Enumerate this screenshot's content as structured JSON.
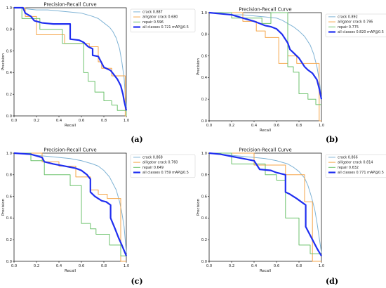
{
  "chart_data": [
    {
      "panel": "(a)",
      "type": "line",
      "title": "Precision-Recall Curve",
      "xlabel": "Recall",
      "ylabel": "Precision",
      "xlim": [
        0,
        1
      ],
      "ylim": [
        0,
        1
      ],
      "xticks": [
        "0.0",
        "0.2",
        "0.4",
        "0.6",
        "0.8",
        "1.0"
      ],
      "yticks": [
        "0.0",
        "0.2",
        "0.4",
        "0.6",
        "0.8",
        "1.0"
      ],
      "legend_position": "top-right",
      "series": [
        {
          "name": "crack 0.887",
          "color": "#7fb3d5",
          "width": 1.0,
          "x": [
            0,
            0.05,
            0.1,
            0.2,
            0.3,
            0.4,
            0.5,
            0.6,
            0.7,
            0.75,
            0.8,
            0.85,
            0.88,
            0.91,
            0.94,
            0.96,
            0.98,
            0.99,
            1.0
          ],
          "y": [
            1,
            1,
            0.99,
            0.98,
            0.98,
            0.97,
            0.96,
            0.95,
            0.92,
            0.9,
            0.86,
            0.82,
            0.78,
            0.72,
            0.62,
            0.5,
            0.35,
            0.2,
            0.08
          ]
        },
        {
          "name": "alligator crack 0.680",
          "color": "#f5a64a",
          "width": 1.0,
          "x": [
            0,
            0.1,
            0.1,
            0.2,
            0.2,
            0.45,
            0.45,
            0.67,
            0.67,
            0.75,
            0.75,
            0.78,
            0.78,
            0.87,
            0.87,
            0.99,
            0.99,
            1.0
          ],
          "y": [
            1,
            1,
            0.92,
            0.92,
            0.75,
            0.75,
            0.67,
            0.67,
            0.64,
            0.64,
            0.5,
            0.5,
            0.44,
            0.44,
            0.37,
            0.37,
            0.0,
            0.0
          ]
        },
        {
          "name": "repair 0.596",
          "color": "#6cc26c",
          "width": 1.0,
          "x": [
            0,
            0.07,
            0.07,
            0.23,
            0.23,
            0.43,
            0.43,
            0.62,
            0.62,
            0.66,
            0.66,
            0.72,
            0.72,
            0.8,
            0.8,
            0.87,
            0.87,
            0.92,
            0.92,
            1.0,
            1.0
          ],
          "y": [
            1,
            1,
            0.9,
            0.9,
            0.8,
            0.8,
            0.67,
            0.67,
            0.4,
            0.4,
            0.32,
            0.32,
            0.22,
            0.22,
            0.14,
            0.14,
            0.1,
            0.1,
            0.05,
            0.05,
            0.0
          ]
        },
        {
          "name": "all classes 0.721 mAP@0.5",
          "color": "#1f2ef0",
          "width": 2.2,
          "x": [
            0,
            0.08,
            0.1,
            0.15,
            0.18,
            0.25,
            0.35,
            0.5,
            0.5,
            0.58,
            0.62,
            0.66,
            0.7,
            0.7,
            0.75,
            0.8,
            0.82,
            0.86,
            0.89,
            0.92,
            0.95,
            0.97,
            0.98,
            1.0
          ],
          "y": [
            1,
            1,
            0.95,
            0.92,
            0.88,
            0.86,
            0.85,
            0.85,
            0.71,
            0.7,
            0.68,
            0.64,
            0.62,
            0.56,
            0.55,
            0.45,
            0.44,
            0.42,
            0.38,
            0.34,
            0.28,
            0.2,
            0.14,
            0.05
          ]
        }
      ]
    },
    {
      "panel": "(b)",
      "type": "line",
      "title": "Precision-Recall Curve",
      "xlabel": "Recall",
      "ylabel": "Precision",
      "xlim": [
        0,
        1
      ],
      "ylim": [
        0,
        1
      ],
      "xticks": [
        "0.0",
        "0.2",
        "0.4",
        "0.6",
        "0.8",
        "1.0"
      ],
      "yticks": [
        "0.0",
        "0.2",
        "0.4",
        "0.6",
        "0.8",
        "1.0"
      ],
      "legend_position": "top-right",
      "series": [
        {
          "name": "crack 0.892",
          "color": "#7fb3d5",
          "width": 1.0,
          "x": [
            0,
            0.1,
            0.2,
            0.3,
            0.4,
            0.5,
            0.6,
            0.65,
            0.7,
            0.75,
            0.8,
            0.85,
            0.9,
            0.93,
            0.96,
            0.98,
            1.0
          ],
          "y": [
            1,
            0.99,
            0.98,
            0.98,
            0.97,
            0.96,
            0.95,
            0.93,
            0.9,
            0.87,
            0.83,
            0.78,
            0.7,
            0.62,
            0.5,
            0.38,
            0.2
          ]
        },
        {
          "name": "alligator crack 0.795",
          "color": "#f5a64a",
          "width": 1.0,
          "x": [
            0,
            0.3,
            0.3,
            0.42,
            0.42,
            0.5,
            0.5,
            0.62,
            0.62,
            0.7,
            0.7,
            0.78,
            0.78,
            0.98,
            0.98,
            1.0
          ],
          "y": [
            1,
            1,
            0.92,
            0.92,
            0.83,
            0.83,
            0.77,
            0.77,
            0.53,
            0.53,
            0.6,
            0.6,
            0.53,
            0.53,
            0.0,
            0.0
          ]
        },
        {
          "name": "repair 0.775",
          "color": "#6cc26c",
          "width": 1.0,
          "x": [
            0,
            0.2,
            0.2,
            0.47,
            0.47,
            0.55,
            0.55,
            0.7,
            0.7,
            0.75,
            0.75,
            0.8,
            0.8,
            0.88,
            0.88,
            0.95,
            0.95,
            1.0
          ],
          "y": [
            1,
            1,
            0.95,
            0.95,
            0.9,
            0.9,
            1.0,
            1.0,
            0.5,
            0.5,
            0.45,
            0.45,
            0.25,
            0.25,
            0.2,
            0.2,
            0.15,
            0.15
          ]
        },
        {
          "name": "all classes 0.820 mAP@0.5",
          "color": "#1f2ef0",
          "width": 2.2,
          "x": [
            0,
            0.2,
            0.3,
            0.4,
            0.45,
            0.5,
            0.55,
            0.6,
            0.65,
            0.7,
            0.72,
            0.75,
            0.8,
            0.85,
            0.88,
            0.92,
            0.96,
            0.98,
            1.0
          ],
          "y": [
            1,
            0.98,
            0.95,
            0.92,
            0.9,
            0.88,
            0.87,
            0.85,
            0.8,
            0.72,
            0.66,
            0.63,
            0.58,
            0.5,
            0.47,
            0.44,
            0.38,
            0.3,
            0.2
          ]
        }
      ]
    },
    {
      "panel": "(c)",
      "type": "line",
      "title": "Precision-Recall Curve",
      "xlabel": "Recall",
      "ylabel": "Precision",
      "xlim": [
        0,
        1
      ],
      "ylim": [
        0,
        1
      ],
      "xticks": [
        "0.0",
        "0.2",
        "0.4",
        "0.6",
        "0.8",
        "1.0"
      ],
      "yticks": [
        "0.0",
        "0.2",
        "0.4",
        "0.6",
        "0.8",
        "1.0"
      ],
      "legend_position": "top-right",
      "series": [
        {
          "name": "crack 0.868",
          "color": "#7fb3d5",
          "width": 1.0,
          "x": [
            0,
            0.1,
            0.2,
            0.3,
            0.4,
            0.5,
            0.6,
            0.7,
            0.75,
            0.8,
            0.85,
            0.88,
            0.91,
            0.94,
            0.96,
            0.98,
            0.99,
            1.0
          ],
          "y": [
            1,
            0.99,
            0.98,
            0.97,
            0.96,
            0.95,
            0.93,
            0.9,
            0.88,
            0.84,
            0.78,
            0.72,
            0.66,
            0.55,
            0.45,
            0.32,
            0.2,
            0.08
          ]
        },
        {
          "name": "alligator crack 0.760",
          "color": "#f5a64a",
          "width": 1.0,
          "x": [
            0,
            0.25,
            0.25,
            0.4,
            0.4,
            0.55,
            0.55,
            0.68,
            0.68,
            0.75,
            0.75,
            0.83,
            0.83,
            0.95,
            0.95,
            1.0
          ],
          "y": [
            1,
            1,
            0.92,
            0.92,
            0.88,
            0.88,
            0.78,
            0.78,
            0.66,
            0.66,
            0.62,
            0.62,
            0.58,
            0.58,
            0.0,
            0.0
          ]
        },
        {
          "name": "repair 0.649",
          "color": "#6cc26c",
          "width": 1.0,
          "x": [
            0,
            0.15,
            0.15,
            0.27,
            0.27,
            0.5,
            0.5,
            0.6,
            0.6,
            0.68,
            0.68,
            0.73,
            0.73,
            0.85,
            0.85,
            0.95,
            0.95,
            1.0
          ],
          "y": [
            1,
            1,
            0.93,
            0.93,
            0.8,
            0.8,
            0.7,
            0.7,
            0.35,
            0.35,
            0.3,
            0.3,
            0.25,
            0.25,
            0.15,
            0.15,
            0.05,
            0.05
          ]
        },
        {
          "name": "all classes 0.759 mAP@0.5",
          "color": "#1f2ef0",
          "width": 2.2,
          "x": [
            0,
            0.15,
            0.25,
            0.27,
            0.35,
            0.45,
            0.55,
            0.6,
            0.65,
            0.68,
            0.68,
            0.72,
            0.75,
            0.78,
            0.82,
            0.86,
            0.86,
            0.9,
            0.93,
            0.96,
            1.0
          ],
          "y": [
            1,
            0.99,
            0.96,
            0.92,
            0.9,
            0.88,
            0.86,
            0.84,
            0.8,
            0.76,
            0.64,
            0.6,
            0.58,
            0.56,
            0.55,
            0.52,
            0.4,
            0.3,
            0.22,
            0.15,
            0.05
          ]
        }
      ]
    },
    {
      "panel": "(d)",
      "type": "line",
      "title": "Precision-Recall Curve",
      "xlabel": "Recall",
      "ylabel": "Precision",
      "xlim": [
        0,
        1
      ],
      "ylim": [
        0,
        1
      ],
      "xticks": [
        "0.0",
        "0.2",
        "0.4",
        "0.6",
        "0.8",
        "1.0"
      ],
      "yticks": [
        "0.0",
        "0.2",
        "0.4",
        "0.6",
        "0.8",
        "1.0"
      ],
      "legend_position": "top-right",
      "series": [
        {
          "name": "crack 0.866",
          "color": "#7fb3d5",
          "width": 1.0,
          "x": [
            0,
            0.1,
            0.2,
            0.3,
            0.4,
            0.5,
            0.6,
            0.7,
            0.75,
            0.8,
            0.85,
            0.88,
            0.91,
            0.94,
            0.96,
            0.98,
            1.0
          ],
          "y": [
            1,
            0.99,
            0.98,
            0.97,
            0.96,
            0.95,
            0.93,
            0.9,
            0.87,
            0.83,
            0.77,
            0.7,
            0.6,
            0.48,
            0.36,
            0.22,
            0.08
          ]
        },
        {
          "name": "alligator crack 0.814",
          "color": "#f5a64a",
          "width": 1.0,
          "x": [
            0,
            0.4,
            0.4,
            0.68,
            0.68,
            0.85,
            0.85,
            0.92,
            0.92,
            1.0
          ],
          "y": [
            1,
            1,
            0.89,
            0.89,
            0.8,
            0.8,
            0.55,
            0.55,
            0.0,
            0.0
          ]
        },
        {
          "name": "repair 0.632",
          "color": "#6cc26c",
          "width": 1.0,
          "x": [
            0,
            0.2,
            0.2,
            0.5,
            0.5,
            0.6,
            0.6,
            0.68,
            0.68,
            0.8,
            0.8,
            0.9,
            0.9,
            1.0
          ],
          "y": [
            1,
            1,
            0.9,
            0.9,
            0.8,
            0.8,
            0.75,
            0.75,
            0.4,
            0.4,
            0.15,
            0.15,
            0.07,
            0.07
          ]
        },
        {
          "name": "all classes 0.771 mAP@0.5",
          "color": "#1f2ef0",
          "width": 2.2,
          "x": [
            0,
            0.1,
            0.2,
            0.3,
            0.4,
            0.45,
            0.55,
            0.6,
            0.68,
            0.68,
            0.72,
            0.78,
            0.82,
            0.86,
            0.86,
            0.9,
            0.93,
            0.96,
            1.0
          ],
          "y": [
            1,
            0.99,
            0.97,
            0.95,
            0.93,
            0.85,
            0.84,
            0.82,
            0.8,
            0.64,
            0.62,
            0.58,
            0.55,
            0.52,
            0.32,
            0.24,
            0.18,
            0.12,
            0.05
          ]
        }
      ]
    }
  ]
}
